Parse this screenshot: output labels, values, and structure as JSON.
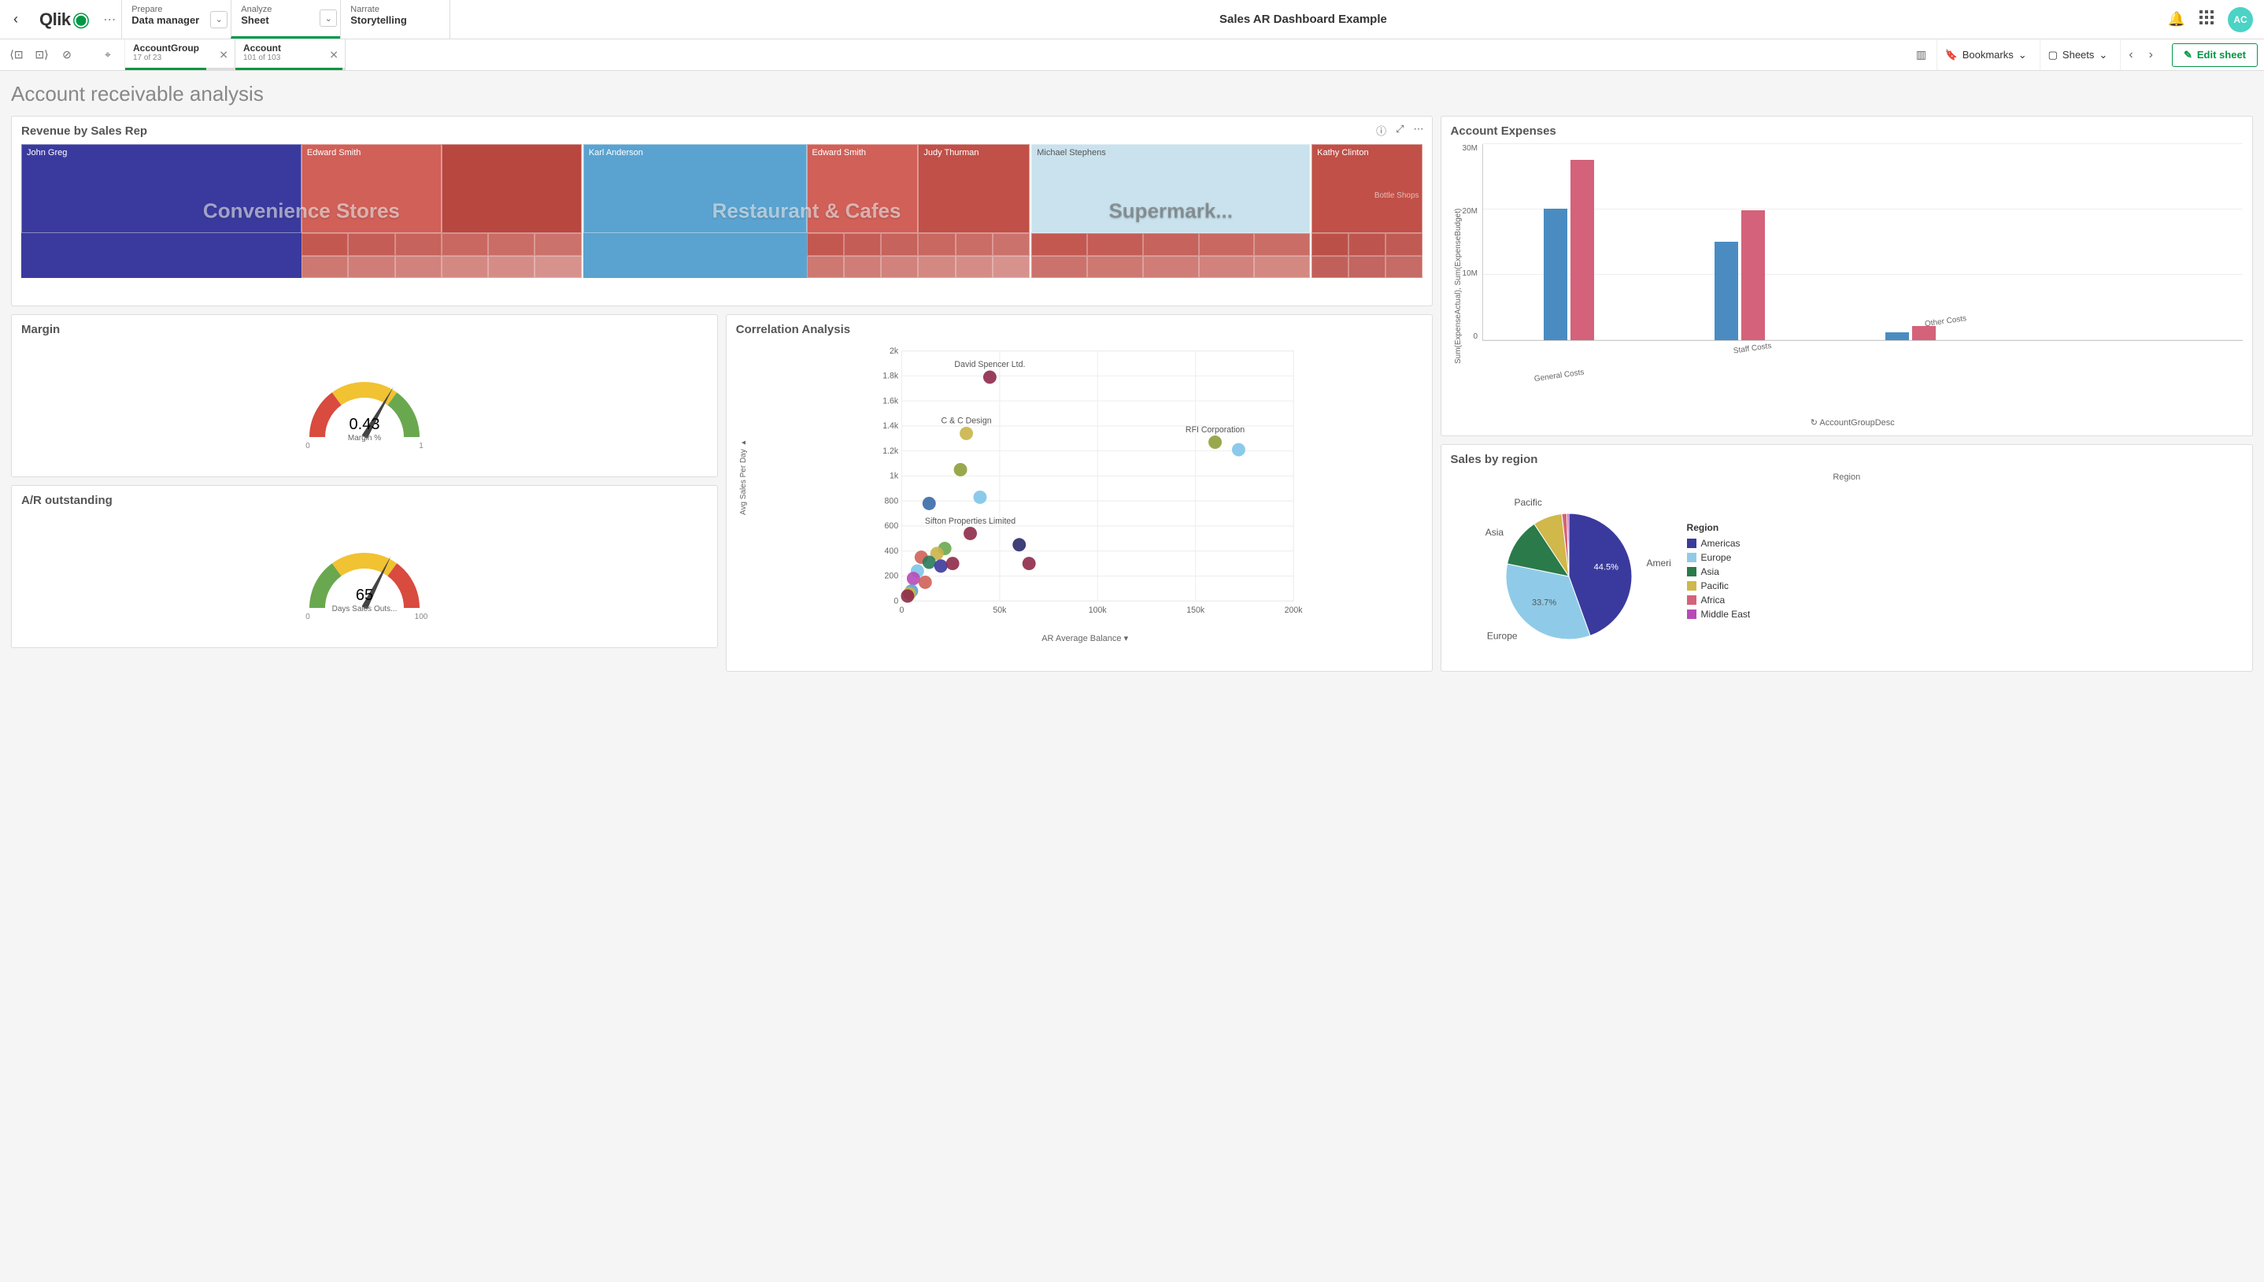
{
  "nav": {
    "logo_text": "Qlik",
    "back_icon": "‹",
    "tabs": [
      {
        "label": "Prepare",
        "value": "Data manager",
        "has_chevron": true
      },
      {
        "label": "Analyze",
        "value": "Sheet",
        "has_chevron": true,
        "active": true
      },
      {
        "label": "Narrate",
        "value": "Storytelling",
        "has_chevron": false
      }
    ],
    "app_title": "Sales AR Dashboard Example",
    "avatar": "AC"
  },
  "selbar": {
    "chips": [
      {
        "name": "AccountGroup",
        "sub": "17 of 23",
        "fill_pct": 74
      },
      {
        "name": "Account",
        "sub": "101 of 103",
        "fill_pct": 98
      }
    ],
    "bookmarks_label": "Bookmarks",
    "sheets_label": "Sheets",
    "edit_label": "Edit sheet"
  },
  "page_title": "Account receivable analysis",
  "treemap": {
    "title": "Revenue by Sales Rep",
    "groups": [
      {
        "label": "Convenience Stores",
        "width": 40,
        "primary": {
          "name": "John Greg",
          "color": "#3a3a9e",
          "width": 50
        },
        "secondary": [
          {
            "name": "Edward Smith",
            "color": "#d06058"
          },
          {
            "name": "",
            "color": "#b84740"
          }
        ],
        "grid_color": "#c05048"
      },
      {
        "label": "Restaurant & Cafes",
        "width": 32,
        "primary": {
          "name": "Karl Anderson",
          "color": "#5aa3d0",
          "width": 50
        },
        "secondary": [
          {
            "name": "Edward Smith",
            "color": "#d06058"
          },
          {
            "name": "Judy Thurman",
            "color": "#c05048"
          }
        ],
        "grid_color": "#c05048"
      },
      {
        "label": "Supermark...",
        "width": 20,
        "dark_label": true,
        "primary": {
          "name": "Michael Stephens",
          "color": "#c9e2ed",
          "width": 100,
          "dark_text": true
        },
        "secondary": [],
        "grid_color": "#c05048"
      },
      {
        "label": "",
        "width": 8,
        "primary": {
          "name": "Kathy Clinton",
          "color": "#c05048",
          "width": 100
        },
        "secondary": [],
        "extra_label": "Bottle Shops",
        "grid_color": "#b84740"
      }
    ]
  },
  "margin_gauge": {
    "title": "Margin",
    "value": "0.43",
    "label": "Margin %",
    "min": "0",
    "max": "1",
    "needle_angle": -60,
    "segments": [
      {
        "color": "#d94a3f",
        "start": -180,
        "end": -126
      },
      {
        "color": "#f1c232",
        "start": -126,
        "end": -54
      },
      {
        "color": "#6aa84f",
        "start": -54,
        "end": 0
      }
    ]
  },
  "ar_gauge": {
    "title": "A/R outstanding",
    "value": "65",
    "label": "Days Sales Outs...",
    "min": "0",
    "max": "100",
    "needle_angle": -63,
    "segments": [
      {
        "color": "#6aa84f",
        "start": -180,
        "end": -126
      },
      {
        "color": "#f1c232",
        "start": -126,
        "end": -54
      },
      {
        "color": "#d94a3f",
        "start": -54,
        "end": 0
      }
    ]
  },
  "scatter": {
    "title": "Correlation Analysis",
    "xlabel": "AR Average Balance",
    "ylabel": "Avg Sales Per Day",
    "xlim": [
      0,
      200000
    ],
    "ylim": [
      0,
      2000
    ],
    "xticks": [
      "0",
      "50k",
      "100k",
      "150k",
      "200k"
    ],
    "yticks": [
      "0",
      "200",
      "400",
      "600",
      "800",
      "1k",
      "1.2k",
      "1.4k",
      "1.6k",
      "1.8k",
      "2k"
    ],
    "points": [
      {
        "x": 45000,
        "y": 1790,
        "c": "#8e2a4a",
        "lbl": "David Spencer Ltd."
      },
      {
        "x": 33000,
        "y": 1340,
        "c": "#c9b44a",
        "lbl": "C & C  Design"
      },
      {
        "x": 160000,
        "y": 1270,
        "c": "#8e9e3a",
        "lbl": "RFI Corporation"
      },
      {
        "x": 172000,
        "y": 1210,
        "c": "#7ec4e8"
      },
      {
        "x": 30000,
        "y": 1050,
        "c": "#8e9e3a"
      },
      {
        "x": 40000,
        "y": 830,
        "c": "#7ec4e8"
      },
      {
        "x": 14000,
        "y": 780,
        "c": "#3a6aa8"
      },
      {
        "x": 35000,
        "y": 540,
        "c": "#8e2a4a",
        "lbl": "Sifton Properties Limited"
      },
      {
        "x": 60000,
        "y": 450,
        "c": "#2a2a6a"
      },
      {
        "x": 65000,
        "y": 300,
        "c": "#8e2a4a"
      },
      {
        "x": 22000,
        "y": 420,
        "c": "#6aa84f"
      },
      {
        "x": 18000,
        "y": 380,
        "c": "#c9b44a"
      },
      {
        "x": 10000,
        "y": 350,
        "c": "#d06058"
      },
      {
        "x": 14000,
        "y": 310,
        "c": "#2a7a5a"
      },
      {
        "x": 20000,
        "y": 280,
        "c": "#3a3a9e"
      },
      {
        "x": 26000,
        "y": 300,
        "c": "#8e2a4a"
      },
      {
        "x": 8000,
        "y": 240,
        "c": "#7ec4e8"
      },
      {
        "x": 6000,
        "y": 180,
        "c": "#b84ab8"
      },
      {
        "x": 12000,
        "y": 150,
        "c": "#d06058"
      },
      {
        "x": 5000,
        "y": 80,
        "c": "#5aa3d0"
      },
      {
        "x": 4000,
        "y": 60,
        "c": "#c9b44a"
      },
      {
        "x": 3000,
        "y": 40,
        "c": "#8e2a4a"
      }
    ]
  },
  "expenses": {
    "title": "Account Expenses",
    "ylabel": "Sum(ExpenseActual), Sum(ExpenseBudget)",
    "xlabel": "AccountGroupDesc",
    "yticks": [
      "0",
      "10M",
      "20M",
      "30M"
    ],
    "ymax": 30,
    "groups": [
      {
        "label": "General Costs",
        "a": 20,
        "b": 27.5
      },
      {
        "label": "Staff Costs",
        "a": 15,
        "b": 19.8
      },
      {
        "label": "Other Costs",
        "a": 1.2,
        "b": 2.2
      },
      {
        "label": "",
        "a": 0,
        "b": 0
      }
    ],
    "colors": {
      "a": "#4a8cc2",
      "b": "#d4627a"
    }
  },
  "pie": {
    "title": "Sales by region",
    "center_label": "Region",
    "legend_title": "Region",
    "slices": [
      {
        "label": "Americas",
        "pct": 44.5,
        "color": "#3a3a9e"
      },
      {
        "label": "Europe",
        "pct": 33.7,
        "color": "#8fcbe8"
      },
      {
        "label": "Asia",
        "pct": 12.5,
        "color": "#2a7a4a"
      },
      {
        "label": "Pacific",
        "pct": 7.5,
        "color": "#d0b84a"
      },
      {
        "label": "Africa",
        "pct": 1.3,
        "color": "#d4627a"
      },
      {
        "label": "Middle East",
        "pct": 0.5,
        "color": "#b84ab8"
      }
    ],
    "callouts": [
      "Pacific",
      "Asia",
      "Americas",
      "Europe"
    ],
    "show_pct": [
      "44.5%",
      "33.7%"
    ]
  }
}
